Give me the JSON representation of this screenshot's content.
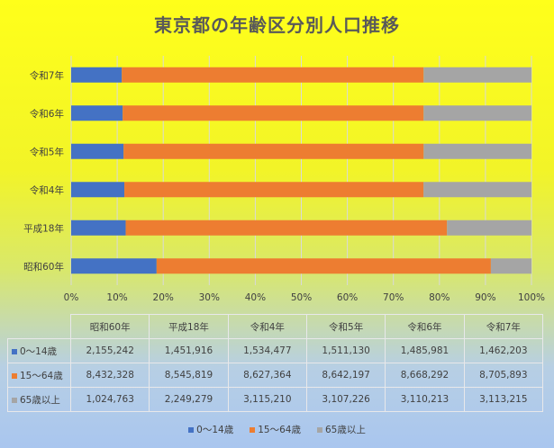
{
  "chart_data": {
    "type": "bar",
    "orientation": "horizontal",
    "stacked": "percent",
    "title": "東京都の年齢区分別人口推移",
    "categories": [
      "昭和60年",
      "平成18年",
      "令和4年",
      "令和5年",
      "令和6年",
      "令和7年"
    ],
    "series": [
      {
        "name": "0〜14歳",
        "color": "#4472c4",
        "values": [
          2155242,
          1451916,
          1534477,
          1511130,
          1485981,
          1462203
        ],
        "labels": [
          "2,155,242",
          "1,451,916",
          "1,534,477",
          "1,511,130",
          "1,485,981",
          "1,462,203"
        ]
      },
      {
        "name": "15〜64歳",
        "color": "#ed7d31",
        "values": [
          8432328,
          8545819,
          8627364,
          8642197,
          8668292,
          8705893
        ],
        "labels": [
          "8,432,328",
          "8,545,819",
          "8,627,364",
          "8,642,197",
          "8,668,292",
          "8,705,893"
        ]
      },
      {
        "name": "65歳以上",
        "color": "#a5a5a5",
        "values": [
          1024763,
          2249279,
          3115210,
          3107226,
          3110213,
          3113215
        ],
        "labels": [
          "1,024,763",
          "2,249,279",
          "3,115,210",
          "3,107,226",
          "3,110,213",
          "3,113,215"
        ]
      }
    ],
    "x_ticks": [
      "0%",
      "10%",
      "20%",
      "30%",
      "40%",
      "50%",
      "60%",
      "70%",
      "80%",
      "90%",
      "100%"
    ],
    "xlim": [
      0,
      100
    ],
    "grid": true,
    "legend_position": "bottom",
    "data_table": true
  }
}
